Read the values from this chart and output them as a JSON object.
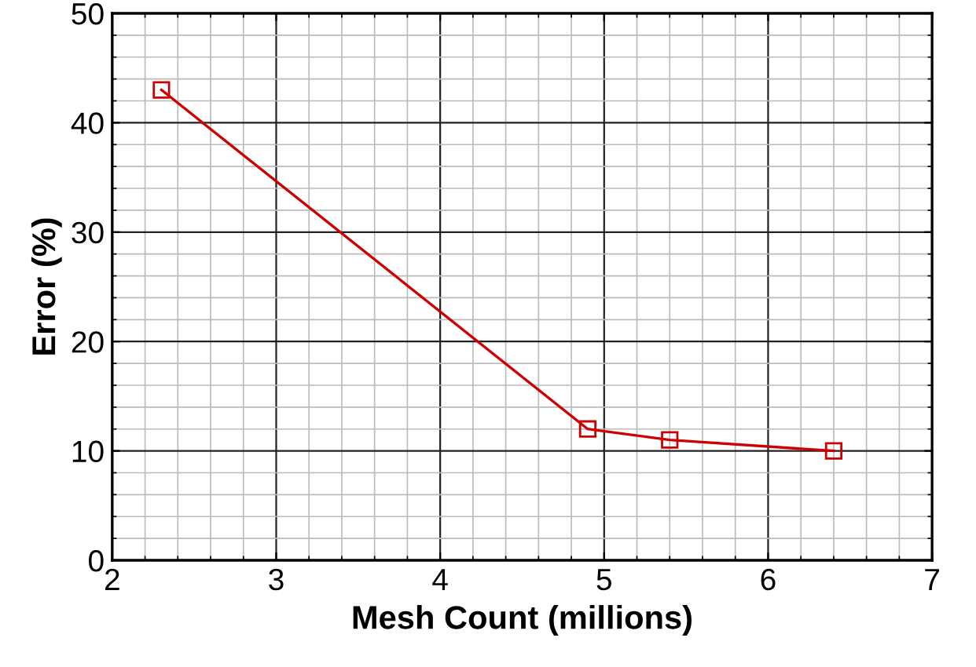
{
  "chart_data": {
    "type": "line",
    "xlabel": "Mesh Count (millions)",
    "ylabel": "Error (%)",
    "x": [
      2.3,
      4.9,
      5.4,
      6.4
    ],
    "series": [
      {
        "color": "#cc0000",
        "values": [
          43,
          12,
          11,
          10
        ]
      }
    ],
    "xlim": [
      2,
      7
    ],
    "xticks": [
      2,
      3,
      4,
      5,
      6,
      7
    ],
    "ylim": [
      0,
      50
    ],
    "yticks": [
      0,
      10,
      20,
      30,
      40,
      50
    ],
    "grid": true,
    "marker": "square",
    "line_style": "solid"
  }
}
